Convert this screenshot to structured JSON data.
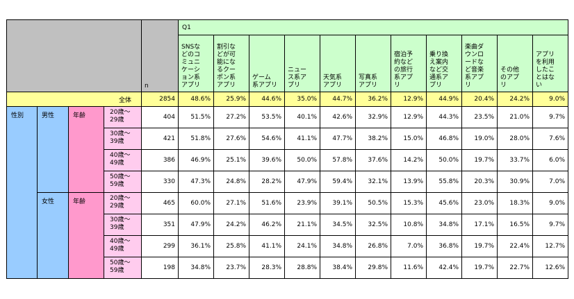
{
  "question": "Q1",
  "n_label": "n",
  "columns": [
    [
      "SNSな",
      "どのコ",
      "ミュニ",
      "ケーシ",
      "ョン系",
      "アプリ"
    ],
    [
      "割引な",
      "どが可",
      "能にな",
      "るクー",
      "ポン系",
      "アプリ"
    ],
    [
      "ゲーム",
      "系アプリ"
    ],
    [
      "ニュー",
      "ス系ア",
      "プリ"
    ],
    [
      "天気系",
      "アプリ"
    ],
    [
      "写真系",
      "アプリ"
    ],
    [
      "宿泊予",
      "約など",
      "の旅行",
      "系アプ",
      "リ"
    ],
    [
      "乗り換",
      "え案内",
      "など交",
      "通系ア",
      "プリ"
    ],
    [
      "楽曲ダ",
      "ウンロ",
      "ードな",
      "ど音楽",
      "系アプ",
      "リ"
    ],
    [
      "その他",
      "のアプ",
      "リ"
    ],
    [
      "アプリ",
      "を利用",
      "したこ",
      "とはな",
      "い"
    ]
  ],
  "total": {
    "label": "全体",
    "n": "2854",
    "values": [
      "48.6%",
      "25.9%",
      "44.6%",
      "35.0%",
      "44.7%",
      "36.2%",
      "12.9%",
      "44.9%",
      "20.4%",
      "24.2%",
      "9.0%"
    ]
  },
  "seibetsu_label": "性別",
  "groups": [
    {
      "gender": "男性",
      "nenrei": "年齢",
      "rows": [
        {
          "age": [
            "20歳～",
            "29歳"
          ],
          "n": "404",
          "values": [
            "51.5%",
            "27.2%",
            "53.5%",
            "40.1%",
            "42.6%",
            "32.9%",
            "12.9%",
            "44.3%",
            "23.5%",
            "21.0%",
            "9.7%"
          ]
        },
        {
          "age": [
            "30歳～",
            "39歳"
          ],
          "n": "421",
          "values": [
            "51.8%",
            "27.6%",
            "54.6%",
            "41.1%",
            "47.7%",
            "38.2%",
            "15.0%",
            "46.8%",
            "19.0%",
            "28.0%",
            "7.6%"
          ]
        },
        {
          "age": [
            "40歳～",
            "49歳"
          ],
          "n": "386",
          "values": [
            "46.9%",
            "25.1%",
            "39.6%",
            "50.0%",
            "57.8%",
            "37.6%",
            "14.2%",
            "50.0%",
            "19.7%",
            "33.7%",
            "6.0%"
          ]
        },
        {
          "age": [
            "50歳～",
            "59歳"
          ],
          "n": "330",
          "values": [
            "47.3%",
            "24.8%",
            "28.2%",
            "47.9%",
            "59.4%",
            "32.1%",
            "13.9%",
            "55.8%",
            "20.3%",
            "30.9%",
            "7.0%"
          ]
        }
      ]
    },
    {
      "gender": "女性",
      "nenrei": "年齢",
      "rows": [
        {
          "age": [
            "20歳～",
            "29歳"
          ],
          "n": "465",
          "values": [
            "60.0%",
            "27.1%",
            "51.6%",
            "23.9%",
            "39.1%",
            "50.5%",
            "15.3%",
            "45.6%",
            "23.0%",
            "18.3%",
            "9.0%"
          ]
        },
        {
          "age": [
            "30歳～",
            "39歳"
          ],
          "n": "351",
          "values": [
            "47.9%",
            "24.2%",
            "46.2%",
            "21.1%",
            "34.5%",
            "32.5%",
            "10.8%",
            "34.8%",
            "17.1%",
            "16.5%",
            "9.7%"
          ]
        },
        {
          "age": [
            "40歳～",
            "49歳"
          ],
          "n": "299",
          "values": [
            "36.1%",
            "25.8%",
            "41.1%",
            "24.1%",
            "34.8%",
            "26.8%",
            "7.0%",
            "36.8%",
            "19.7%",
            "22.4%",
            "12.7%"
          ]
        },
        {
          "age": [
            "50歳～",
            "59歳"
          ],
          "n": "198",
          "values": [
            "34.8%",
            "23.7%",
            "28.3%",
            "28.8%",
            "38.4%",
            "29.8%",
            "11.6%",
            "42.4%",
            "19.7%",
            "22.7%",
            "12.6%"
          ]
        }
      ]
    }
  ],
  "colors": {
    "header_grey": "#c0c0c0",
    "header_green": "#ccffcc",
    "total_yellow": "#ffff99",
    "gender_blue": "#99ccff",
    "age_pink": "#ff99cc",
    "age_pink_light": "#ffccee"
  }
}
